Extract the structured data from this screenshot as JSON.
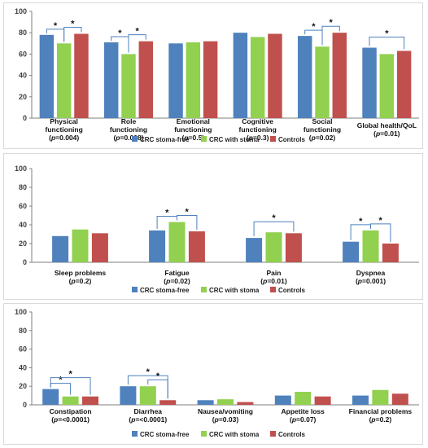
{
  "series_colors": [
    "#4F81BD",
    "#92D050",
    "#C0504D"
  ],
  "chart_data": [
    {
      "type": "bar",
      "ylim": [
        0,
        100
      ],
      "yticks": [
        0,
        20,
        40,
        60,
        80,
        100
      ],
      "grid": false,
      "legend_position": "bottom",
      "legend": [
        "CRC stoma-free",
        "CRC with stoma",
        "Controls"
      ],
      "categories": [
        {
          "label": "Physical functioning",
          "p": "0.004"
        },
        {
          "label": "Role functioning",
          "p": "0.008"
        },
        {
          "label": "Emotional functioning",
          "p": "0.5"
        },
        {
          "label": "Cognitive functioning",
          "p": "0.3"
        },
        {
          "label": "Social functioning",
          "p": "0.02"
        },
        {
          "label": "Global health/QoL",
          "p": "0.01"
        }
      ],
      "series": [
        {
          "name": "CRC stoma-free",
          "values": [
            78,
            71,
            70,
            80,
            77,
            66
          ]
        },
        {
          "name": "CRC with stoma",
          "values": [
            70,
            60,
            71,
            76,
            67,
            60
          ]
        },
        {
          "name": "Controls",
          "values": [
            79,
            72,
            72,
            79,
            80,
            63
          ]
        }
      ],
      "significance": [
        {
          "category": 0,
          "from": 0,
          "to": 1,
          "label": "*"
        },
        {
          "category": 0,
          "from": 1,
          "to": 2,
          "label": "*"
        },
        {
          "category": 1,
          "from": 0,
          "to": 1,
          "label": "*"
        },
        {
          "category": 1,
          "from": 1,
          "to": 2,
          "label": "*"
        },
        {
          "category": 4,
          "from": 0,
          "to": 1,
          "label": "*"
        },
        {
          "category": 4,
          "from": 1,
          "to": 2,
          "label": "*"
        },
        {
          "category": 5,
          "from": 0,
          "to": 2,
          "label": "*"
        }
      ]
    },
    {
      "type": "bar",
      "ylim": [
        0,
        100
      ],
      "yticks": [
        0,
        20,
        40,
        60,
        80,
        100
      ],
      "grid": false,
      "legend_position": "bottom",
      "legend": [
        "CRC stoma-free",
        "CRC with stoma",
        "Controls"
      ],
      "categories": [
        {
          "label": "Sleep problems",
          "p": "0.2"
        },
        {
          "label": "Fatigue",
          "p": "0.02"
        },
        {
          "label": "Pain",
          "p": "0.01"
        },
        {
          "label": "Dyspnea",
          "p": "0.001"
        }
      ],
      "series": [
        {
          "name": "CRC stoma-free",
          "values": [
            28,
            34,
            26,
            22
          ]
        },
        {
          "name": "CRC with stoma",
          "values": [
            35,
            43,
            32,
            34
          ]
        },
        {
          "name": "Controls",
          "values": [
            31,
            33,
            31,
            20
          ]
        }
      ],
      "significance": [
        {
          "category": 1,
          "from": 0,
          "to": 1,
          "label": "*"
        },
        {
          "category": 1,
          "from": 1,
          "to": 2,
          "label": "*"
        },
        {
          "category": 2,
          "from": 0,
          "to": 2,
          "label": "*"
        },
        {
          "category": 3,
          "from": 0,
          "to": 1,
          "label": "*"
        },
        {
          "category": 3,
          "from": 1,
          "to": 2,
          "label": "*"
        }
      ]
    },
    {
      "type": "bar",
      "ylim": [
        0,
        100
      ],
      "yticks": [
        0,
        20,
        40,
        60,
        80,
        100
      ],
      "grid": false,
      "legend_position": "bottom",
      "legend": [
        "CRC stoma-free",
        "CRC with stoma",
        "Controls"
      ],
      "categories": [
        {
          "label": "Constipation",
          "p": "<0.0001"
        },
        {
          "label": "Diarrhea",
          "p": "<0.0001"
        },
        {
          "label": "Nausea/vomiting",
          "p": "0.03"
        },
        {
          "label": "Appetite loss",
          "p": "0.07"
        },
        {
          "label": "Financial problems",
          "p": "0.2"
        }
      ],
      "series": [
        {
          "name": "CRC stoma-free",
          "values": [
            17,
            20,
            5,
            10,
            10
          ]
        },
        {
          "name": "CRC with stoma",
          "values": [
            9,
            20,
            6,
            14,
            16
          ]
        },
        {
          "name": "Controls",
          "values": [
            9,
            5,
            3,
            9,
            12
          ]
        }
      ],
      "significance": [
        {
          "category": 0,
          "from": 0,
          "to": 1,
          "label": "*"
        },
        {
          "category": 0,
          "from": 0,
          "to": 2,
          "label": "*"
        },
        {
          "category": 1,
          "from": 0,
          "to": 2,
          "label": "*"
        },
        {
          "category": 1,
          "from": 1,
          "to": 2,
          "label": "*"
        }
      ]
    }
  ]
}
